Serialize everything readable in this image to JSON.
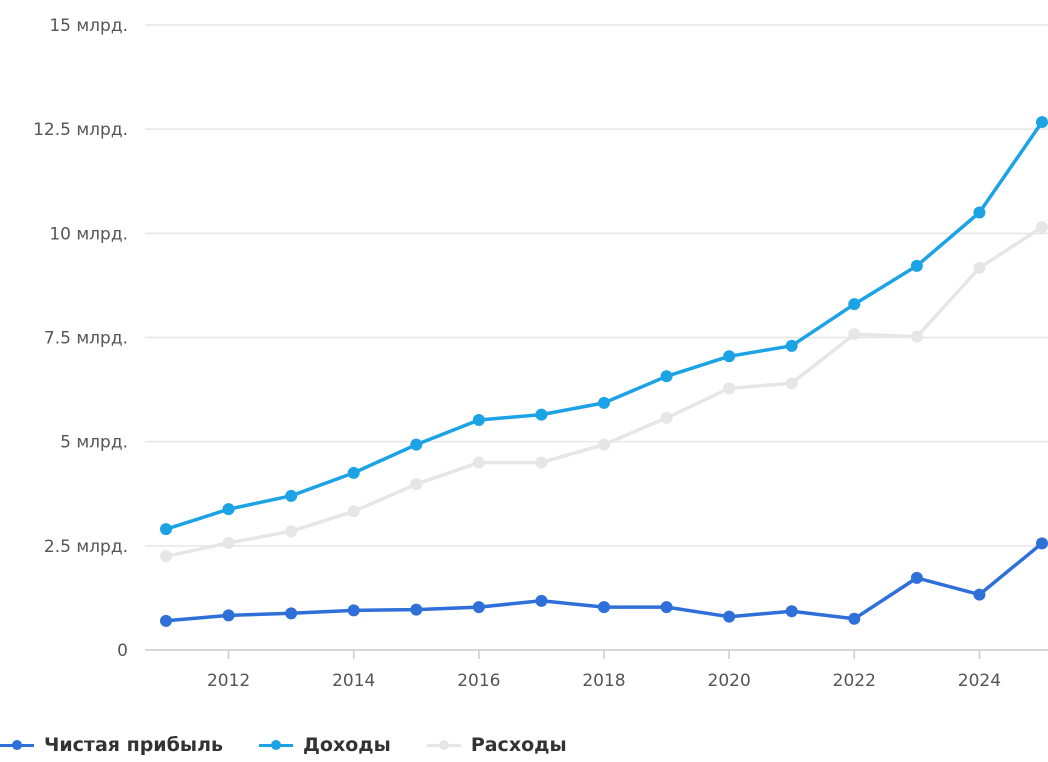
{
  "chart_data": {
    "type": "line",
    "title": "",
    "xlabel": "",
    "ylabel": "",
    "x": [
      2011,
      2012,
      2013,
      2014,
      2015,
      2016,
      2017,
      2018,
      2019,
      2020,
      2021,
      2022,
      2023,
      2024,
      2025
    ],
    "xticks": [
      "2012",
      "2014",
      "2016",
      "2018",
      "2020",
      "2022",
      "2024"
    ],
    "yticks": [
      "0",
      "2.5 млрд.",
      "5 млрд.",
      "7.5 млрд.",
      "10 млрд.",
      "12.5 млрд.",
      "15 млрд."
    ],
    "ylim": [
      0,
      15
    ],
    "xlim": [
      2011,
      2025
    ],
    "grid": true,
    "legend_position": "bottom-left",
    "y_unit": "млрд.",
    "series": [
      {
        "name": "Чистая прибыль",
        "color": "#2f6fd8",
        "values": [
          0.7,
          0.83,
          0.88,
          0.95,
          0.97,
          1.03,
          1.18,
          1.03,
          1.03,
          0.8,
          0.93,
          0.75,
          1.73,
          1.33,
          2.56
        ]
      },
      {
        "name": "Доходы",
        "color": "#1ca3e6",
        "values": [
          2.9,
          3.38,
          3.7,
          4.25,
          4.93,
          5.52,
          5.65,
          5.93,
          6.57,
          7.05,
          7.3,
          8.3,
          9.22,
          10.5,
          12.67
        ]
      },
      {
        "name": "Расходы",
        "color": "#e6e6e6",
        "values": [
          2.25,
          2.57,
          2.85,
          3.33,
          3.98,
          4.5,
          4.5,
          4.93,
          5.57,
          6.28,
          6.4,
          7.58,
          7.52,
          9.17,
          10.15
        ]
      }
    ]
  }
}
